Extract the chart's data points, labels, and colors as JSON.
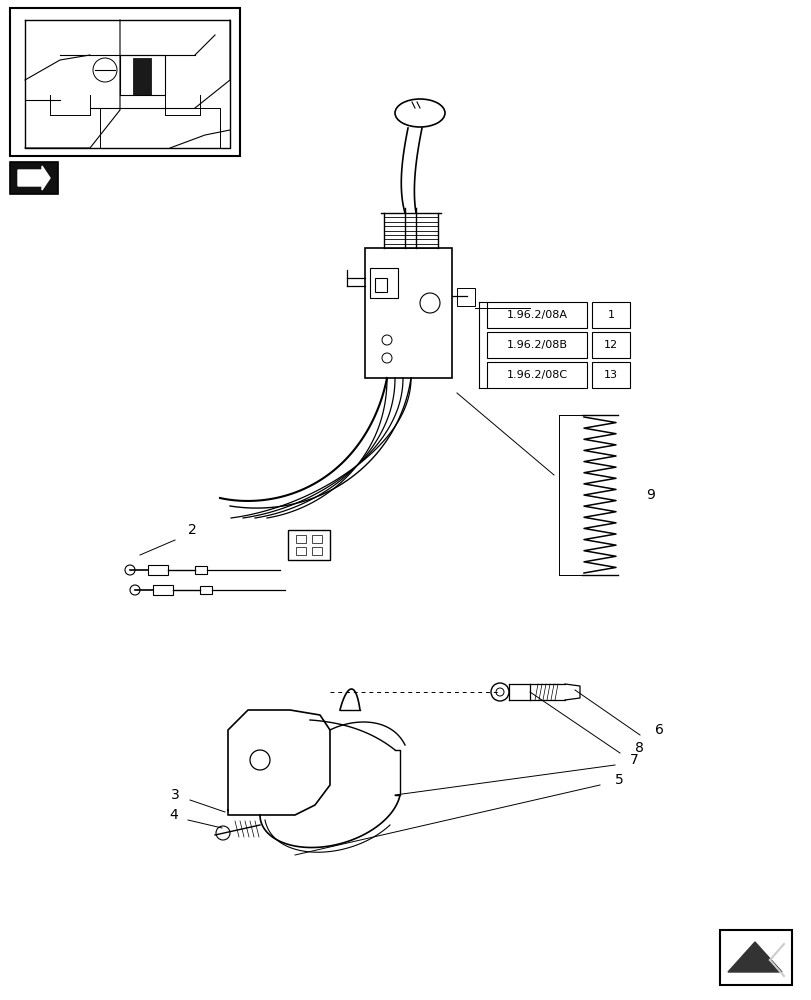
{
  "bg_color": "#ffffff",
  "line_color": "#000000",
  "box_labels": [
    {
      "text": "1.96.2/08A",
      "num": "1"
    },
    {
      "text": "1.96.2/08B",
      "num": "12"
    },
    {
      "text": "1.96.2/08C",
      "num": "13"
    }
  ],
  "figsize": [
    8.12,
    10.0
  ],
  "dpi": 100
}
